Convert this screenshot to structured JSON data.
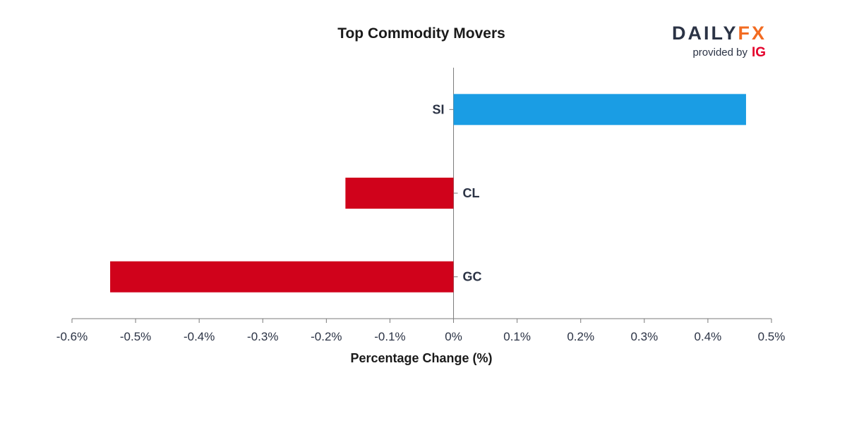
{
  "brand": {
    "name_part1": "DAILY",
    "name_part2": "FX",
    "provided_by": "provided by",
    "ig": "IG",
    "colors": {
      "primary": "#2b3345",
      "accent": "#f26b21",
      "ig": "#e4002b"
    }
  },
  "chart_data": {
    "type": "bar",
    "orientation": "horizontal",
    "title": "Top Commodity Movers",
    "xlabel": "Percentage Change (%)",
    "ylabel": "",
    "categories": [
      "SI",
      "CL",
      "GC"
    ],
    "values": [
      0.46,
      -0.17,
      -0.54
    ],
    "xlim": [
      -0.6,
      0.5
    ],
    "xticks": [
      -0.6,
      -0.5,
      -0.4,
      -0.3,
      -0.2,
      -0.1,
      0,
      0.1,
      0.2,
      0.3,
      0.4,
      0.5
    ],
    "xtick_labels": [
      "-0.6%",
      "-0.5%",
      "-0.4%",
      "-0.3%",
      "-0.2%",
      "-0.1%",
      "0%",
      "0.1%",
      "0.2%",
      "0.3%",
      "0.4%",
      "0.5%"
    ],
    "colors": {
      "positive": "#1a9de4",
      "negative": "#d0021b"
    },
    "grid": false,
    "legend": "none"
  }
}
